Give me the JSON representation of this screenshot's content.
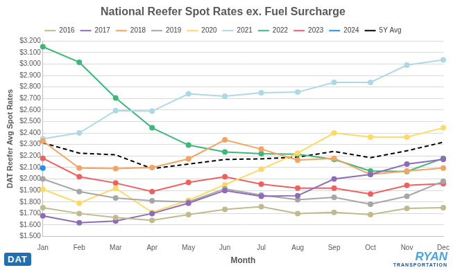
{
  "chart_data": {
    "type": "line",
    "title": "National Reefer Spot Rates ex. Fuel Surcharge",
    "x_label": "Month",
    "y_label": "DAT Reefer Avg Spot Rates",
    "annotations": [
      "DAT",
      "RYAN",
      "TRANSPORTATION"
    ],
    "categories": [
      "Jan",
      "Feb",
      "Mar",
      "Apr",
      "May",
      "Jun",
      "Jul",
      "Aug",
      "Sep",
      "Oct",
      "Nov",
      "Dec"
    ],
    "series": [
      {
        "name": "2016",
        "color": "#c2b98c",
        "marker": "circle",
        "line_style": "solid",
        "values": [
          1.75,
          1.7,
          1.665,
          1.64,
          1.69,
          1.735,
          1.76,
          1.7,
          1.71,
          1.69,
          1.745,
          1.75
        ]
      },
      {
        "name": "2017",
        "color": "#8e6bb8",
        "marker": "circle",
        "line_style": "solid",
        "values": [
          1.68,
          1.62,
          1.635,
          1.7,
          1.79,
          1.9,
          1.85,
          1.855,
          2.0,
          2.04,
          2.13,
          2.17
        ]
      },
      {
        "name": "2018",
        "color": "#f4a460",
        "marker": "circle",
        "line_style": "solid",
        "values": [
          2.33,
          2.095,
          2.09,
          2.1,
          2.175,
          2.34,
          2.26,
          2.165,
          2.18,
          2.04,
          2.07,
          2.095
        ]
      },
      {
        "name": "2019",
        "color": "#a6a6a6",
        "marker": "circle",
        "line_style": "solid",
        "values": [
          2.0,
          1.89,
          1.835,
          1.81,
          1.8,
          1.915,
          1.86,
          1.82,
          1.84,
          1.78,
          1.85,
          1.98
        ]
      },
      {
        "name": "2020",
        "color": "#ffd966",
        "marker": "circle",
        "line_style": "solid",
        "values": [
          1.91,
          1.79,
          1.92,
          1.71,
          1.815,
          1.95,
          2.085,
          2.225,
          2.4,
          2.365,
          2.365,
          2.445
        ]
      },
      {
        "name": "2021",
        "color": "#add8e6",
        "marker": "circle",
        "line_style": "solid",
        "values": [
          2.35,
          2.4,
          2.595,
          2.59,
          2.74,
          2.72,
          2.75,
          2.755,
          2.84,
          2.84,
          2.99,
          3.035
        ]
      },
      {
        "name": "2022",
        "color": "#3cb878",
        "marker": "circle",
        "line_style": "solid",
        "values": [
          3.15,
          3.015,
          2.705,
          2.445,
          2.295,
          2.235,
          2.22,
          2.215,
          2.17,
          2.07,
          2.065,
          2.18
        ]
      },
      {
        "name": "2023",
        "color": "#f06060",
        "marker": "circle",
        "line_style": "solid",
        "values": [
          2.18,
          2.02,
          1.965,
          1.89,
          1.97,
          2.02,
          1.955,
          1.92,
          1.92,
          1.87,
          1.945,
          1.96
        ]
      },
      {
        "name": "2024",
        "color": "#1e90ff",
        "marker": "circle",
        "line_style": "solid",
        "values": [
          2.095,
          null,
          null,
          null,
          null,
          null,
          null,
          null,
          null,
          null,
          null,
          null
        ]
      },
      {
        "name": "5Y Avg",
        "color": "#000000",
        "marker": "none",
        "line_style": "dashed",
        "values": [
          2.315,
          2.225,
          2.21,
          2.09,
          2.13,
          2.17,
          2.175,
          2.19,
          2.24,
          2.185,
          2.245,
          2.32
        ]
      }
    ],
    "ylim": [
      1.5,
      3.2
    ],
    "yticks": [
      {
        "value": 1.5,
        "label": "$1.500"
      },
      {
        "value": 1.6,
        "label": "$1.600"
      },
      {
        "value": 1.7,
        "label": "$1.700"
      },
      {
        "value": 1.8,
        "label": "$1.800"
      },
      {
        "value": 1.9,
        "label": "$1.900"
      },
      {
        "value": 2.0,
        "label": "$2.000"
      },
      {
        "value": 2.1,
        "label": "$2.100"
      },
      {
        "value": 2.2,
        "label": "$2.200"
      },
      {
        "value": 2.3,
        "label": "$2.300"
      },
      {
        "value": 2.4,
        "label": "$2.400"
      },
      {
        "value": 2.5,
        "label": "$2.500"
      },
      {
        "value": 2.6,
        "label": "$2.600"
      },
      {
        "value": 2.7,
        "label": "$2.700"
      },
      {
        "value": 2.8,
        "label": "$2.800"
      },
      {
        "value": 2.9,
        "label": "$2.900"
      },
      {
        "value": 3.0,
        "label": "$3.000"
      },
      {
        "value": 3.1,
        "label": "$3.100"
      },
      {
        "value": 3.2,
        "label": "$3.200"
      }
    ],
    "grid": true,
    "legend": "top"
  }
}
